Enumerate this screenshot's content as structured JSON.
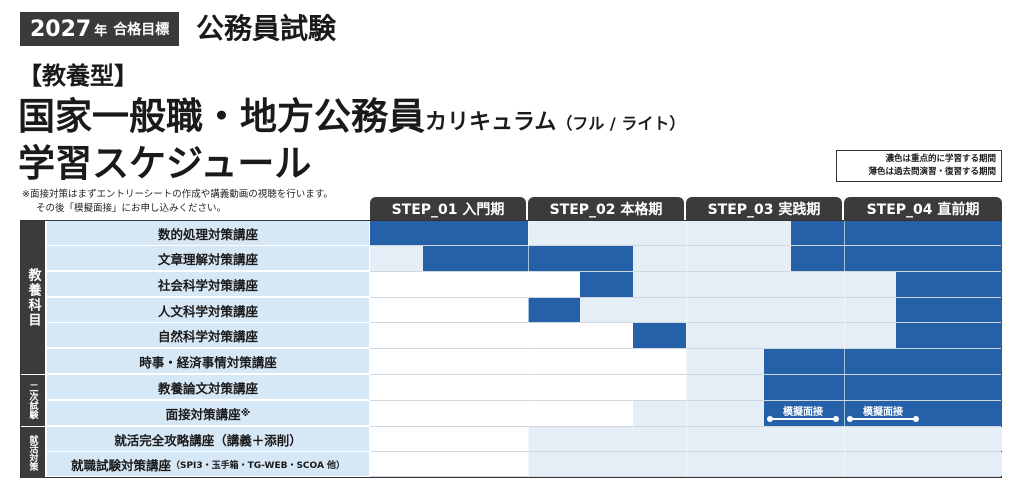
{
  "header": {
    "year": "2027",
    "year_suffix": "年",
    "goal": "合格目標",
    "exam": "公務員試験",
    "subtype": "【教養型】",
    "title_main": "国家一般職・地方公務員",
    "title_curriculum": "カリキュラム",
    "title_variant": "（フル / ライト）",
    "schedule_title": "学習スケジュール"
  },
  "legend": {
    "dark": "濃色は重点的に学習する期間",
    "light": "薄色は過去問演習・復習する期間"
  },
  "notes": [
    "※面接対策はまずエントリーシートの作成や講義動画の視聴を行います。",
    "その後「模擬面接」にお申し込みください。"
  ],
  "steps": [
    "STEP_01 入門期",
    "STEP_02 本格期",
    "STEP_03 実践期",
    "STEP_04 直前期"
  ],
  "groups": [
    {
      "label": "教養科目",
      "rows": 6
    },
    {
      "label": "二次試験",
      "rows": 2
    },
    {
      "label": "就活対策",
      "rows": 2
    }
  ],
  "courses": [
    "数的処理対策講座",
    "文章理解対策講座",
    "社会科学対策講座",
    "人文科学対策講座",
    "自然科学対策講座",
    "時事・経済事情対策講座",
    "教養論文対策講座",
    "面接対策講座",
    "就活完全攻略講座（講義＋添削）",
    "就職試験対策講座"
  ],
  "course_suffix": {
    "asterisk": "※",
    "spi_note": "（SPI3・玉手箱・TG-WEB・SCOA 他）"
  },
  "mock_interview": "模擬面接",
  "colors": {
    "dark": "#2561a8",
    "light": "#e5edf6",
    "empty": "#ffffff",
    "label_bg": "#d6e7f6",
    "header_bg": "#3b3b3b"
  },
  "schedule_rows": [
    [
      "D",
      "D",
      "D",
      "D",
      "D",
      "D",
      "D",
      "D",
      "D",
      "D",
      "D",
      "D",
      "L",
      "L",
      "L",
      "L",
      "L",
      "L",
      "L",
      "L",
      "L",
      "L",
      "L",
      "L",
      "L",
      "L",
      "L",
      "L",
      "L",
      "L",
      "L",
      "L",
      "D",
      "D",
      "D",
      "D",
      "D",
      "D",
      "D",
      "D",
      "D",
      "D",
      "D",
      "D",
      "D",
      "D",
      "D",
      "D"
    ],
    [
      "L",
      "L",
      "L",
      "L",
      "D",
      "D",
      "D",
      "D",
      "D",
      "D",
      "D",
      "D",
      "D",
      "D",
      "D",
      "D",
      "D",
      "D",
      "D",
      "D",
      "L",
      "L",
      "L",
      "L",
      "L",
      "L",
      "L",
      "L",
      "L",
      "L",
      "L",
      "L",
      "D",
      "D",
      "D",
      "D",
      "D",
      "D",
      "D",
      "D",
      "D",
      "D",
      "D",
      "D",
      "D",
      "D",
      "D",
      "D"
    ],
    [
      "W",
      "W",
      "W",
      "W",
      "W",
      "W",
      "W",
      "W",
      "W",
      "W",
      "W",
      "W",
      "W",
      "W",
      "W",
      "W",
      "D",
      "D",
      "D",
      "D",
      "L",
      "L",
      "L",
      "L",
      "L",
      "L",
      "L",
      "L",
      "L",
      "L",
      "L",
      "L",
      "L",
      "L",
      "L",
      "L",
      "L",
      "L",
      "L",
      "L",
      "D",
      "D",
      "D",
      "D",
      "D",
      "D",
      "D",
      "D"
    ],
    [
      "W",
      "W",
      "W",
      "W",
      "W",
      "W",
      "W",
      "W",
      "W",
      "W",
      "W",
      "W",
      "D",
      "D",
      "D",
      "D",
      "L",
      "L",
      "L",
      "L",
      "L",
      "L",
      "L",
      "L",
      "L",
      "L",
      "L",
      "L",
      "L",
      "L",
      "L",
      "L",
      "L",
      "L",
      "L",
      "L",
      "L",
      "L",
      "L",
      "L",
      "D",
      "D",
      "D",
      "D",
      "D",
      "D",
      "D",
      "D"
    ],
    [
      "W",
      "W",
      "W",
      "W",
      "W",
      "W",
      "W",
      "W",
      "W",
      "W",
      "W",
      "W",
      "W",
      "W",
      "W",
      "W",
      "W",
      "W",
      "W",
      "W",
      "D",
      "D",
      "D",
      "D",
      "L",
      "L",
      "L",
      "L",
      "L",
      "L",
      "L",
      "L",
      "L",
      "L",
      "L",
      "L",
      "L",
      "L",
      "L",
      "L",
      "D",
      "D",
      "D",
      "D",
      "D",
      "D",
      "D",
      "D"
    ],
    [
      "W",
      "W",
      "W",
      "W",
      "W",
      "W",
      "W",
      "W",
      "W",
      "W",
      "W",
      "W",
      "W",
      "W",
      "W",
      "W",
      "W",
      "W",
      "W",
      "W",
      "W",
      "W",
      "W",
      "W",
      "L",
      "L",
      "L",
      "L",
      "L",
      "L",
      "D",
      "D",
      "D",
      "D",
      "D",
      "D",
      "D",
      "D",
      "D",
      "D",
      "D",
      "D",
      "D",
      "D",
      "D",
      "D",
      "D",
      "D"
    ],
    [
      "W",
      "W",
      "W",
      "W",
      "W",
      "W",
      "W",
      "W",
      "W",
      "W",
      "W",
      "W",
      "W",
      "W",
      "W",
      "W",
      "W",
      "W",
      "W",
      "W",
      "W",
      "W",
      "W",
      "W",
      "L",
      "L",
      "L",
      "L",
      "L",
      "L",
      "D",
      "D",
      "D",
      "D",
      "D",
      "D",
      "D",
      "D",
      "D",
      "D",
      "D",
      "D",
      "D",
      "D",
      "D",
      "D",
      "D",
      "D"
    ],
    [
      "W",
      "W",
      "W",
      "W",
      "W",
      "W",
      "W",
      "W",
      "W",
      "W",
      "W",
      "W",
      "W",
      "W",
      "W",
      "W",
      "W",
      "W",
      "W",
      "W",
      "L",
      "L",
      "L",
      "L",
      "L",
      "L",
      "L",
      "L",
      "L",
      "L",
      "D",
      "D",
      "D",
      "D",
      "D",
      "D",
      "D",
      "D",
      "D",
      "D",
      "D",
      "D",
      "D",
      "D",
      "D",
      "D",
      "D",
      "D"
    ],
    [
      "W",
      "W",
      "W",
      "W",
      "W",
      "W",
      "W",
      "W",
      "W",
      "W",
      "W",
      "W",
      "L",
      "L",
      "L",
      "L",
      "L",
      "L",
      "L",
      "L",
      "L",
      "L",
      "L",
      "L",
      "L",
      "L",
      "L",
      "L",
      "L",
      "L",
      "L",
      "L",
      "L",
      "L",
      "L",
      "L",
      "L",
      "L",
      "L",
      "L",
      "L",
      "L",
      "L",
      "L",
      "L",
      "L",
      "L",
      "L"
    ],
    [
      "W",
      "W",
      "W",
      "W",
      "W",
      "W",
      "W",
      "W",
      "W",
      "W",
      "W",
      "W",
      "L",
      "L",
      "L",
      "L",
      "L",
      "L",
      "L",
      "L",
      "L",
      "L",
      "L",
      "L",
      "L",
      "L",
      "L",
      "L",
      "L",
      "L",
      "L",
      "L",
      "L",
      "L",
      "L",
      "L",
      "L",
      "L",
      "L",
      "L",
      "L",
      "L",
      "L",
      "L",
      "L",
      "L",
      "L",
      "L"
    ]
  ]
}
